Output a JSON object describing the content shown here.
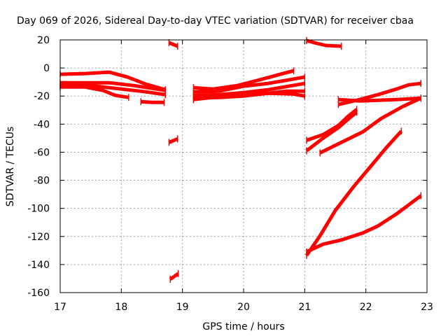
{
  "chart_data": {
    "type": "line",
    "title": "Day 069 of 2026, Sidereal Day-to-day VTEC variation (SDTVAR) for receiver cbaa",
    "xlabel": "GPS time / hours",
    "ylabel": "SDTVAR / TECUs",
    "xlim": [
      17,
      23
    ],
    "ylim": [
      -160,
      20
    ],
    "xticks": [
      17,
      18,
      19,
      20,
      21,
      22,
      23
    ],
    "yticks": [
      -160,
      -140,
      -120,
      -100,
      -80,
      -60,
      -40,
      -20,
      0,
      20
    ],
    "xtick_labels": [
      "17",
      "18",
      "19",
      "20",
      "21",
      "22",
      "23"
    ],
    "ytick_labels": [
      "-160",
      "-140",
      "-120",
      "-100",
      "-80",
      "-60",
      "-40",
      "-20",
      "0",
      "20"
    ],
    "grid": true,
    "color": "#ff0000",
    "series": [
      {
        "points": [
          [
            17.0,
            -4.5
          ],
          [
            17.4,
            -4.0
          ],
          [
            17.8,
            -3.0
          ],
          [
            18.1,
            -6.5
          ],
          [
            18.4,
            -11.5
          ],
          [
            18.72,
            -15.5
          ]
        ]
      },
      {
        "points": [
          [
            17.0,
            -10.5
          ],
          [
            17.4,
            -10.5
          ],
          [
            17.8,
            -10.5
          ],
          [
            18.2,
            -12.5
          ],
          [
            18.5,
            -14.5
          ],
          [
            18.72,
            -16.0
          ]
        ]
      },
      {
        "points": [
          [
            17.0,
            -12.0
          ],
          [
            17.5,
            -12.5
          ],
          [
            18.0,
            -15.0
          ],
          [
            18.4,
            -17.0
          ],
          [
            18.72,
            -19.0
          ]
        ]
      },
      {
        "points": [
          [
            17.0,
            -13.5
          ],
          [
            17.4,
            -13.5
          ],
          [
            17.7,
            -16.0
          ],
          [
            17.9,
            -19.5
          ],
          [
            18.12,
            -21.0
          ]
        ]
      },
      {
        "points": [
          [
            18.32,
            -24.0
          ],
          [
            18.5,
            -24.5
          ],
          [
            18.7,
            -24.5
          ]
        ]
      },
      {
        "points": [
          [
            18.78,
            18.0
          ],
          [
            18.92,
            15.5
          ]
        ]
      },
      {
        "points": [
          [
            18.78,
            -53.0
          ],
          [
            18.92,
            -50.5
          ]
        ]
      },
      {
        "points": [
          [
            18.8,
            -150.5
          ],
          [
            18.93,
            -146.5
          ]
        ]
      },
      {
        "points": [
          [
            19.18,
            -14.0
          ],
          [
            19.5,
            -15.0
          ],
          [
            19.9,
            -12.5
          ],
          [
            20.3,
            -8.0
          ],
          [
            20.6,
            -4.5
          ],
          [
            20.82,
            -2.0
          ]
        ]
      },
      {
        "points": [
          [
            19.18,
            -17.0
          ],
          [
            19.6,
            -16.5
          ],
          [
            20.0,
            -13.0
          ],
          [
            20.4,
            -11.0
          ],
          [
            20.8,
            -8.0
          ],
          [
            21.0,
            -6.5
          ]
        ]
      },
      {
        "points": [
          [
            19.18,
            -19.5
          ],
          [
            19.6,
            -19.0
          ],
          [
            20.0,
            -17.5
          ],
          [
            20.4,
            -15.5
          ],
          [
            20.8,
            -12.5
          ],
          [
            21.0,
            -11.0
          ]
        ]
      },
      {
        "points": [
          [
            19.18,
            -21.5
          ],
          [
            19.6,
            -21.0
          ],
          [
            20.0,
            -20.0
          ],
          [
            20.4,
            -18.0
          ],
          [
            20.7,
            -16.5
          ],
          [
            21.0,
            -16.5
          ]
        ]
      },
      {
        "points": [
          [
            19.18,
            -22.5
          ],
          [
            19.6,
            -20.5
          ],
          [
            20.0,
            -19.0
          ],
          [
            20.4,
            -18.0
          ],
          [
            20.8,
            -18.5
          ],
          [
            21.0,
            -20.0
          ]
        ]
      },
      {
        "points": [
          [
            21.03,
            19.5
          ],
          [
            21.2,
            17.5
          ],
          [
            21.35,
            16.0
          ],
          [
            21.6,
            15.5
          ]
        ]
      },
      {
        "points": [
          [
            21.03,
            -51.5
          ],
          [
            21.3,
            -47.5
          ],
          [
            21.55,
            -41.0
          ],
          [
            21.72,
            -34.0
          ],
          [
            21.85,
            -29.5
          ]
        ]
      },
      {
        "points": [
          [
            21.03,
            -59.0
          ],
          [
            21.3,
            -50.0
          ],
          [
            21.55,
            -42.5
          ],
          [
            21.75,
            -35.0
          ],
          [
            21.85,
            -31.5
          ]
        ]
      },
      {
        "points": [
          [
            21.25,
            -60.5
          ],
          [
            21.6,
            -53.0
          ],
          [
            21.95,
            -45.5
          ],
          [
            22.25,
            -36.0
          ],
          [
            22.6,
            -27.5
          ],
          [
            22.9,
            -21.5
          ]
        ]
      },
      {
        "points": [
          [
            21.55,
            -26.0
          ],
          [
            21.9,
            -22.5
          ],
          [
            22.2,
            -19.0
          ],
          [
            22.5,
            -15.0
          ],
          [
            22.7,
            -12.0
          ],
          [
            22.9,
            -11.0
          ]
        ]
      },
      {
        "points": [
          [
            21.55,
            -22.5
          ],
          [
            21.9,
            -23.5
          ],
          [
            22.2,
            -23.0
          ],
          [
            22.5,
            -22.5
          ],
          [
            22.9,
            -21.5
          ]
        ]
      },
      {
        "points": [
          [
            21.03,
            -133.5
          ],
          [
            21.25,
            -119.5
          ],
          [
            21.5,
            -101.5
          ],
          [
            21.8,
            -84.5
          ],
          [
            22.1,
            -69.0
          ],
          [
            22.35,
            -56.0
          ],
          [
            22.58,
            -45.0
          ]
        ]
      },
      {
        "points": [
          [
            21.03,
            -131.0
          ],
          [
            21.3,
            -125.5
          ],
          [
            21.6,
            -122.5
          ],
          [
            21.95,
            -117.5
          ],
          [
            22.2,
            -112.5
          ],
          [
            22.5,
            -104.0
          ],
          [
            22.9,
            -91.0
          ]
        ]
      }
    ]
  }
}
